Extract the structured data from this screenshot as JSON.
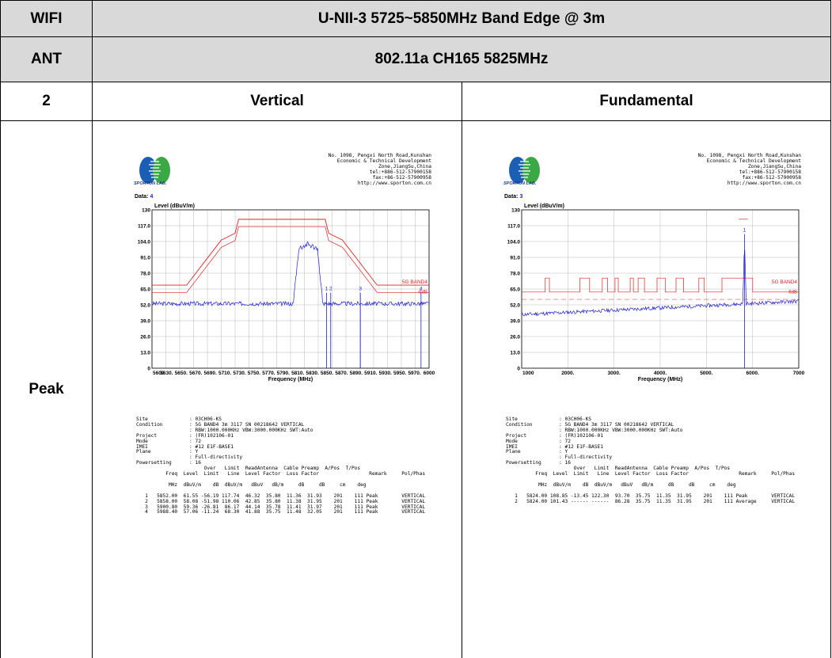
{
  "table": {
    "wifi": "WIFI",
    "band_title": "U-NII-3 5725~5850MHz Band Edge @ 3m",
    "ant": "ANT",
    "mode_title": "802.11a CH165 5825MHz",
    "ant_no": "2",
    "left_header": "Vertical",
    "right_header": "Fundamental",
    "row_label": "Peak"
  },
  "lab": {
    "name": "SPORTON LAB.",
    "address": "No. 1098, Pengxi North Road,Kunshan\nEconomic & Technical Development\nZone,JiangSu,China\ntel:+886-512-57900158\nfax:+86-512-57900958\nhttp://www.sporton.com.cn"
  },
  "left_plot": {
    "data_label": "Data:",
    "data_value": "4",
    "info": "Site              : 03CH06-KS\nCondition         : 5G BAND4 3m 3117 SN 00218642 VERTICAL\n                  : RBW:1000.000KHz VBW:3000.000KHz SWT:Auto\nProject           : (FR)102106-01\nMode              : 72\nIMEI              : #12 E1F-BASE1\nPlane             : Y\n                  : Full-directivity\nPowersetting      : 16\n                       Over   Limit  ReadAntenna  Cable Preamp  A/Pos  T/Pos\n          Freq  Level  Limit   Line  Level Factor  Loss Factor                 Remark     Pol/Phas\n\n           MHz  dBuV/m    dB  dBuV/m   dBuV   dB/m     dB     dB     cm    deg\n\n   1   5852.00  61.55 -56.19 117.74  46.32  35.80  11.36  31.93    201    111 Peak        VERTICAL\n   2   5858.00  58.08 -51.98 110.06  42.85  35.80  11.38  31.95    201    111 Peak        VERTICAL\n   3   5900.80  59.36 -26.81  86.17  44.14  35.78  11.41  31.97    201    111 Peak        VERTICAL\n   4   5988.40  57.06 -11.24  68.30  41.88  35.75  11.48  32.05    201    111 Peak        VERTICAL",
    "chart_data": {
      "type": "line",
      "ylabel": "Level (dBuV/m)",
      "xlabel": "Frequency (MHz)",
      "xlim": [
        5600,
        6000
      ],
      "ylim": [
        0,
        130
      ],
      "y_ticks": [
        "0",
        "13.0",
        "26.0",
        "39.0",
        "52.0",
        "65.0",
        "78.0",
        "91.0",
        "104.0",
        "117.0",
        "130"
      ],
      "x_ticks": [
        "5600",
        "5630.",
        "5650.",
        "5670.",
        "5690.",
        "5710.",
        "5730.",
        "5750.",
        "5770.",
        "5790.",
        "5810.",
        "5830.",
        "5850.",
        "5870.",
        "5890.",
        "5910.",
        "5930.",
        "5950.",
        "5970.",
        "6000"
      ],
      "limit_label": "5G BAND4",
      "limit_sub_label": "-6dB",
      "marker_labels": [
        "1",
        "2",
        "3",
        "4"
      ],
      "markers_mhz": [
        5852.0,
        5858.0,
        5900.8,
        5988.4
      ],
      "limit_line": [
        [
          5600,
          68.2
        ],
        [
          5650,
          68.2
        ],
        [
          5700,
          105.2
        ],
        [
          5720,
          110.8
        ],
        [
          5725,
          122.2
        ],
        [
          5850,
          122.2
        ],
        [
          5855,
          110.8
        ],
        [
          5875,
          105.2
        ],
        [
          5925,
          68.2
        ],
        [
          6000,
          68.2
        ]
      ],
      "limit_6db": [
        [
          5600,
          62.2
        ],
        [
          5650,
          62.2
        ],
        [
          5700,
          99.2
        ],
        [
          5720,
          104.8
        ],
        [
          5725,
          116.2
        ],
        [
          5850,
          116.2
        ],
        [
          5855,
          104.8
        ],
        [
          5875,
          99.2
        ],
        [
          5925,
          62.2
        ],
        [
          6000,
          62.2
        ]
      ]
    }
  },
  "right_plot": {
    "data_label": "Data:",
    "data_value": "3",
    "info": "Site              : 03CH06-KS\nCondition         : 5G BAND4 3m 3117 SN 00218642 VERTICAL\n                  : RBW:1000.000KHz VBW:3000.000KHz SWT:Auto\nProject           : (FR)102106-01\nMode              : 72\nIMEI              : #12 E1F-BASE1\nPlane             : Y\n                  : Full-directivity\nPowersetting      : 16\n                       Over   Limit  ReadAntenna  Cable Preamp  A/Pos  T/Pos\n          Freq  Level  Limit   Line  Level Factor  Loss Factor                 Remark     Pol/Phas\n\n           MHz  dBuV/m    dB  dBuV/m   dBuV   dB/m     dB     dB     cm    deg\n\n   1   5824.00 108.85 -13.45 122.30  93.70  35.75  11.35  31.95    201    111 Peak        VERTICAL\n   2   5824.00 101.43 ------ ------  86.28  35.75  11.35  31.95    201    111 Average     VERTICAL",
    "chart_data": {
      "type": "line",
      "ylabel": "Level (dBuV/m)",
      "xlabel": "Frequency (MHz)",
      "xlim": [
        1000,
        7000
      ],
      "ylim": [
        0,
        130
      ],
      "y_ticks": [
        "0",
        "13.0",
        "26.0",
        "39.0",
        "52.0",
        "65.0",
        "78.0",
        "91.0",
        "104.0",
        "117.0",
        "130"
      ],
      "x_ticks": [
        "1000",
        "2000.",
        "3000.",
        "4000.",
        "5000.",
        "6000.",
        "7000"
      ],
      "limit_label": "5G BAND4",
      "limit_sub_label": "-6dB",
      "marker_labels": [
        "1"
      ],
      "markers_mhz": [
        5824.0
      ]
    }
  },
  "colors": {
    "header_bg": "#d9d9d9",
    "limit": "#e02020",
    "trace": "#2020d0",
    "grid": "#b8b8b8"
  }
}
